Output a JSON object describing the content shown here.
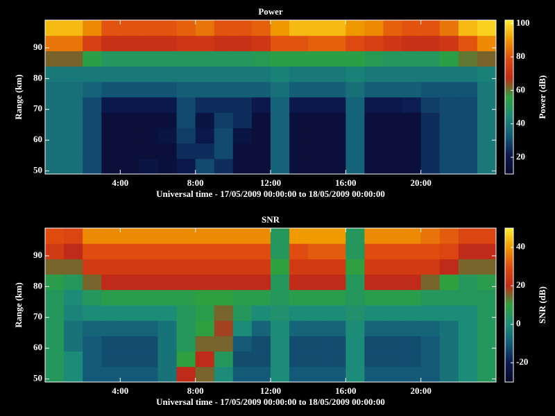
{
  "chart_data": [
    {
      "type": "heatmap",
      "title": "Power",
      "xlabel": "Universal time - 17/05/2009 00:00:00 to 18/05/2009 00:00:00",
      "ylabel": "Range (km)",
      "colorbar_label": "Power (dB)",
      "x": [
        0.5,
        1.5,
        2.5,
        3.5,
        4.5,
        5.5,
        6.5,
        7.5,
        8.5,
        9.5,
        10.5,
        11.5,
        12.5,
        13.5,
        14.5,
        15.5,
        16.5,
        17.5,
        18.5,
        19.5,
        20.5,
        21.5,
        22.5,
        23.5
      ],
      "y": [
        51.5,
        56.5,
        61.5,
        66.5,
        71.5,
        76.5,
        81.5,
        86.5,
        91.5,
        96.5
      ],
      "values": [
        [
          38,
          38,
          30,
          15,
          15,
          18,
          15,
          20,
          30,
          25,
          15,
          15,
          35,
          15,
          15,
          15,
          35,
          15,
          15,
          15,
          25,
          30,
          30,
          40
        ],
        [
          38,
          38,
          30,
          15,
          15,
          15,
          15,
          25,
          25,
          30,
          15,
          15,
          35,
          15,
          15,
          15,
          35,
          15,
          15,
          15,
          25,
          30,
          30,
          40
        ],
        [
          38,
          38,
          30,
          15,
          15,
          15,
          18,
          28,
          20,
          30,
          18,
          15,
          35,
          15,
          15,
          15,
          35,
          15,
          15,
          15,
          25,
          30,
          30,
          40
        ],
        [
          38,
          38,
          30,
          15,
          15,
          15,
          15,
          30,
          18,
          28,
          25,
          15,
          35,
          15,
          15,
          15,
          35,
          15,
          15,
          15,
          25,
          30,
          30,
          40
        ],
        [
          38,
          38,
          30,
          20,
          20,
          20,
          20,
          30,
          25,
          25,
          25,
          20,
          35,
          20,
          20,
          20,
          35,
          20,
          20,
          22,
          28,
          30,
          30,
          40
        ],
        [
          38,
          38,
          35,
          32,
          32,
          32,
          32,
          34,
          34,
          34,
          34,
          34,
          38,
          34,
          34,
          34,
          38,
          34,
          34,
          34,
          32,
          32,
          32,
          40
        ],
        [
          40,
          40,
          40,
          40,
          40,
          40,
          40,
          40,
          40,
          40,
          40,
          40,
          42,
          40,
          40,
          40,
          42,
          40,
          40,
          40,
          40,
          40,
          40,
          42
        ],
        [
          62,
          62,
          55,
          50,
          50,
          50,
          50,
          50,
          50,
          50,
          50,
          52,
          55,
          55,
          55,
          55,
          55,
          52,
          50,
          50,
          50,
          55,
          60,
          62
        ],
        [
          85,
          85,
          75,
          70,
          70,
          70,
          70,
          72,
          72,
          70,
          70,
          72,
          80,
          80,
          82,
          82,
          78,
          75,
          72,
          70,
          70,
          72,
          80,
          88
        ],
        [
          95,
          95,
          88,
          80,
          80,
          80,
          80,
          82,
          85,
          80,
          80,
          82,
          90,
          95,
          95,
          95,
          90,
          88,
          82,
          80,
          80,
          85,
          95,
          98
        ]
      ],
      "xlim": [
        0,
        24
      ],
      "xticks": [
        {
          "value": 4,
          "label": "4:00"
        },
        {
          "value": 8,
          "label": "8:00"
        },
        {
          "value": 12,
          "label": "12:00"
        },
        {
          "value": 16,
          "label": "16:00"
        },
        {
          "value": 20,
          "label": "20:00"
        }
      ],
      "ylim": [
        49,
        99
      ],
      "yticks": [
        50,
        60,
        70,
        80,
        90
      ],
      "clim": [
        10,
        102
      ],
      "cticks": [
        20,
        40,
        60,
        80,
        100
      ],
      "colormap": [
        "#080828",
        "#0c1a50",
        "#145a78",
        "#1c8c78",
        "#2ea040",
        "#c02a18",
        "#e04c10",
        "#f09a00",
        "#ffee30"
      ]
    },
    {
      "type": "heatmap",
      "title": "SNR",
      "xlabel": "Universal time - 17/05/2009 00:00:00 to 18/05/2009 00:00:00",
      "ylabel": "Range (km)",
      "colorbar_label": "SNR (dB)",
      "x": [
        0.5,
        1.5,
        2.5,
        3.5,
        4.5,
        5.5,
        6.5,
        7.5,
        8.5,
        9.5,
        10.5,
        11.5,
        12.5,
        13.5,
        14.5,
        15.5,
        16.5,
        17.5,
        18.5,
        19.5,
        20.5,
        21.5,
        22.5,
        23.5
      ],
      "y": [
        51.5,
        56.5,
        61.5,
        66.5,
        71.5,
        76.5,
        81.5,
        86.5,
        91.5,
        96.5
      ],
      "values": [
        [
          5,
          0,
          -10,
          -10,
          -10,
          -10,
          -5,
          20,
          15,
          0,
          -10,
          -10,
          0,
          -10,
          -10,
          -10,
          0,
          -10,
          -10,
          -10,
          -10,
          -5,
          0,
          5
        ],
        [
          5,
          0,
          -10,
          -12,
          -12,
          -12,
          -5,
          10,
          20,
          5,
          -12,
          -12,
          0,
          -12,
          -12,
          -12,
          0,
          -12,
          -12,
          -12,
          -10,
          -5,
          0,
          5
        ],
        [
          5,
          -5,
          -10,
          -12,
          -12,
          -12,
          -5,
          5,
          15,
          15,
          -10,
          -12,
          0,
          -12,
          -12,
          -12,
          0,
          -12,
          -12,
          -12,
          -10,
          -5,
          0,
          5
        ],
        [
          5,
          -5,
          -8,
          -8,
          -8,
          -8,
          -5,
          5,
          10,
          18,
          0,
          -8,
          0,
          -8,
          -8,
          -8,
          0,
          -8,
          -8,
          -8,
          -8,
          -5,
          0,
          5
        ],
        [
          5,
          -2,
          0,
          0,
          0,
          0,
          0,
          5,
          8,
          15,
          5,
          0,
          2,
          0,
          0,
          0,
          2,
          0,
          0,
          0,
          0,
          0,
          0,
          5
        ],
        [
          5,
          0,
          5,
          8,
          8,
          8,
          8,
          8,
          10,
          10,
          8,
          8,
          5,
          8,
          8,
          8,
          5,
          8,
          8,
          8,
          5,
          5,
          5,
          5
        ],
        [
          8,
          5,
          15,
          20,
          20,
          20,
          20,
          20,
          20,
          20,
          20,
          20,
          5,
          20,
          20,
          20,
          5,
          20,
          20,
          20,
          15,
          10,
          5,
          8
        ],
        [
          15,
          15,
          25,
          25,
          25,
          25,
          25,
          25,
          25,
          25,
          25,
          25,
          10,
          25,
          25,
          25,
          10,
          25,
          25,
          25,
          25,
          20,
          15,
          15
        ],
        [
          25,
          20,
          30,
          30,
          30,
          30,
          30,
          30,
          30,
          30,
          30,
          30,
          5,
          30,
          32,
          32,
          5,
          30,
          30,
          30,
          30,
          28,
          20,
          20
        ],
        [
          30,
          28,
          38,
          38,
          38,
          38,
          38,
          38,
          38,
          38,
          38,
          38,
          5,
          40,
          40,
          40,
          5,
          38,
          38,
          38,
          35,
          32,
          28,
          28
        ]
      ],
      "xlim": [
        0,
        24
      ],
      "xticks": [
        {
          "value": 4,
          "label": "4:00"
        },
        {
          "value": 8,
          "label": "8:00"
        },
        {
          "value": 12,
          "label": "12:00"
        },
        {
          "value": 16,
          "label": "16:00"
        },
        {
          "value": 20,
          "label": "20:00"
        }
      ],
      "ylim": [
        49,
        99
      ],
      "yticks": [
        50,
        60,
        70,
        80,
        90
      ],
      "clim": [
        -30,
        50
      ],
      "cticks": [
        -20,
        0,
        20,
        40
      ],
      "colormap": [
        "#080828",
        "#0c1a50",
        "#145a78",
        "#1c8c78",
        "#2ea040",
        "#c02a18",
        "#e04c10",
        "#f09a00",
        "#ffee30"
      ]
    }
  ]
}
